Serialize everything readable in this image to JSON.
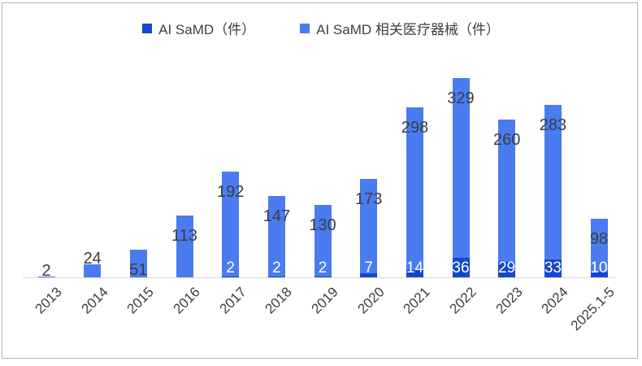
{
  "chart_data": {
    "type": "bar",
    "stacked": true,
    "title": "",
    "categories": [
      "2013",
      "2014",
      "2015",
      "2016",
      "2017",
      "2018",
      "2019",
      "2020",
      "2021",
      "2022",
      "2023",
      "2024",
      "2025.1-5"
    ],
    "series": [
      {
        "name": "AI SaMD（件）",
        "color": "#1646cf",
        "label_color": "#ffffff",
        "values": [
          0,
          0,
          0,
          0,
          2,
          2,
          2,
          7,
          14,
          36,
          29,
          33,
          10
        ]
      },
      {
        "name": "AI SaMD 相关医疗器械（件）",
        "color": "#4a7bf0",
        "label_color": "#3d3d3d",
        "values": [
          2,
          24,
          51,
          113,
          192,
          147,
          130,
          173,
          298,
          329,
          260,
          283,
          98
        ]
      }
    ],
    "legend_position": "top",
    "grid": false,
    "axis_line_color": "#d9d9d9",
    "frame_border_color": "#b3b3b3",
    "ylim": [
      0,
      380
    ]
  }
}
